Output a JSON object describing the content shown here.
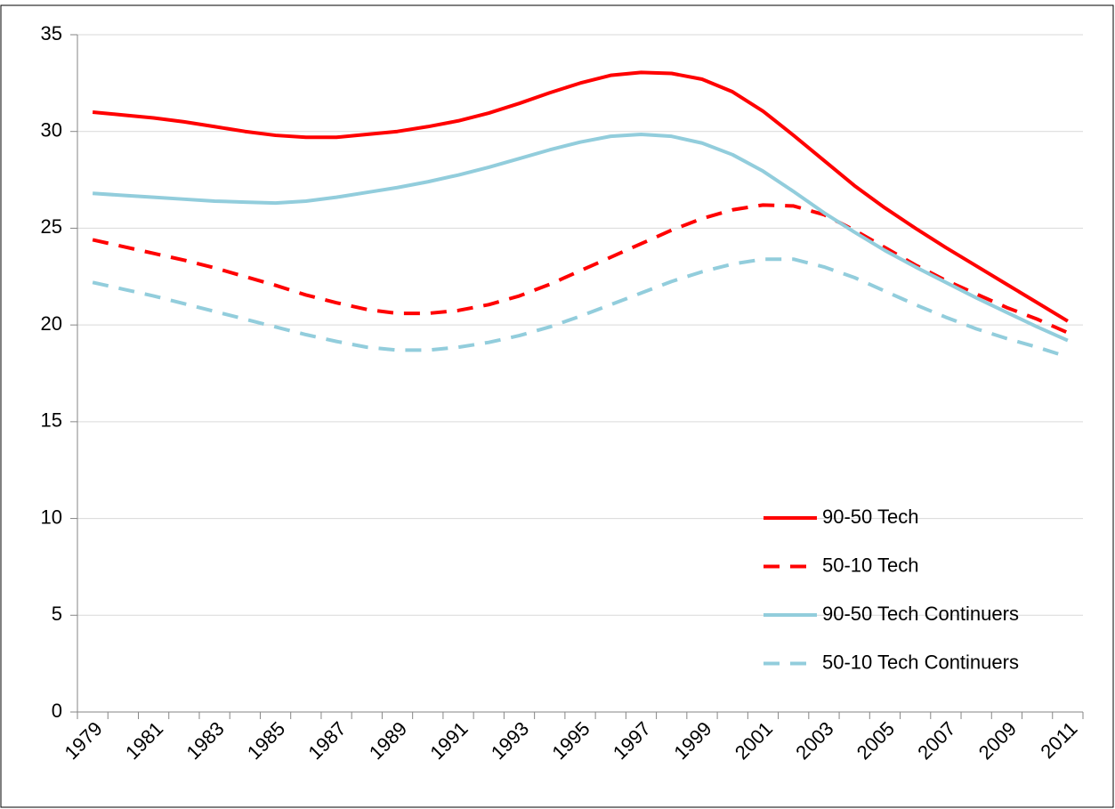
{
  "chart_data": {
    "type": "line",
    "categories": [
      "1979",
      null,
      "1981",
      null,
      "1983",
      null,
      "1985",
      null,
      "1987",
      null,
      "1989",
      null,
      "1991",
      null,
      "1993",
      null,
      "1995",
      null,
      "1997",
      null,
      "1999",
      null,
      "2001",
      null,
      "2003",
      null,
      "2005",
      null,
      "2007",
      null,
      "2009",
      null,
      "2011"
    ],
    "series": [
      {
        "name": "90-50 Tech",
        "color": "#ff0000",
        "dashed": false,
        "values": [
          31.0,
          30.85,
          30.7,
          30.5,
          30.25,
          30.0,
          29.8,
          29.7,
          29.7,
          29.85,
          30.0,
          30.25,
          30.55,
          30.95,
          31.45,
          32.0,
          32.5,
          32.9,
          33.05,
          33.0,
          32.7,
          32.05,
          31.05,
          29.8,
          28.5,
          27.2,
          26.05,
          25.0,
          24.0,
          23.05,
          22.1,
          21.15,
          20.2
        ]
      },
      {
        "name": "50-10 Tech",
        "color": "#ff0000",
        "dashed": true,
        "values": [
          24.4,
          24.05,
          23.7,
          23.35,
          22.95,
          22.5,
          22.05,
          21.55,
          21.15,
          20.8,
          20.6,
          20.6,
          20.75,
          21.05,
          21.5,
          22.1,
          22.8,
          23.5,
          24.2,
          24.9,
          25.5,
          25.95,
          26.2,
          26.15,
          25.7,
          24.9,
          24.0,
          23.1,
          22.3,
          21.6,
          20.9,
          20.3,
          19.6
        ]
      },
      {
        "name": "90-50 Tech Continuers",
        "color": "#92cddc",
        "dashed": false,
        "values": [
          26.8,
          26.7,
          26.6,
          26.5,
          26.4,
          26.35,
          26.3,
          26.4,
          26.6,
          26.85,
          27.1,
          27.4,
          27.75,
          28.15,
          28.6,
          29.05,
          29.45,
          29.75,
          29.85,
          29.75,
          29.4,
          28.8,
          27.95,
          26.9,
          25.8,
          24.8,
          23.85,
          23.0,
          22.2,
          21.4,
          20.65,
          19.9,
          19.2
        ]
      },
      {
        "name": "50-10 Tech Continuers",
        "color": "#92cddc",
        "dashed": true,
        "values": [
          22.2,
          21.85,
          21.5,
          21.1,
          20.7,
          20.3,
          19.9,
          19.5,
          19.15,
          18.85,
          18.7,
          18.7,
          18.85,
          19.1,
          19.45,
          19.9,
          20.45,
          21.05,
          21.65,
          22.25,
          22.75,
          23.15,
          23.4,
          23.4,
          23.0,
          22.45,
          21.75,
          21.05,
          20.4,
          19.8,
          19.3,
          18.85,
          18.35
        ]
      }
    ],
    "ylim": [
      0,
      35
    ],
    "yticks": [
      0,
      5,
      10,
      15,
      20,
      25,
      30,
      35
    ],
    "grid": true,
    "legend": "lower-right"
  }
}
